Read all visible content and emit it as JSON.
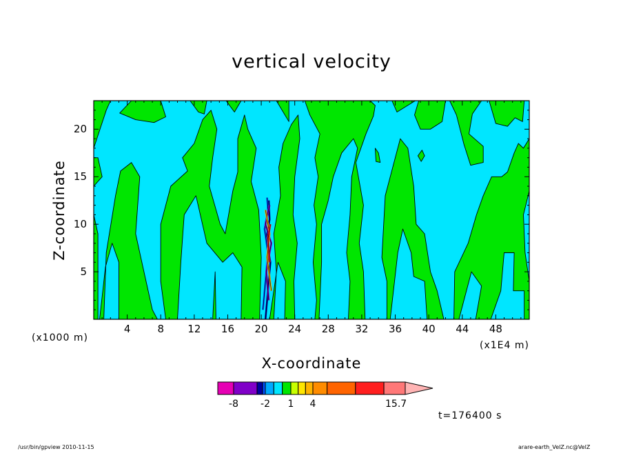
{
  "chart_data": {
    "type": "heatmap",
    "title": "vertical velocity",
    "xlabel": "X-coordinate",
    "ylabel": "Z-coordinate",
    "x_unit_left": "(x1000 m)",
    "x_unit_right": "(x1E4 m)",
    "xlim": [
      0,
      52
    ],
    "ylim": [
      0,
      23
    ],
    "x_ticks": [
      4,
      8,
      12,
      16,
      20,
      24,
      28,
      32,
      36,
      40,
      44,
      48
    ],
    "y_ticks": [
      5,
      10,
      15,
      20
    ],
    "colorbar_labels": [
      {
        "value": -8,
        "text": "-8"
      },
      {
        "value": -2,
        "text": "-2"
      },
      {
        "value": 1,
        "text": "1"
      },
      {
        "value": 4,
        "text": "4"
      },
      {
        "value": 15.7,
        "text": "15.7"
      }
    ],
    "colorbar": [
      {
        "from": -10,
        "to": -8,
        "color": "#e600b4"
      },
      {
        "from": -8,
        "to": -5,
        "color": "#8000c8"
      },
      {
        "from": -5,
        "to": -3,
        "color": "#0000a0"
      },
      {
        "from": -3,
        "to": -2,
        "color": "#0050ff"
      },
      {
        "from": -2,
        "to": -1,
        "color": "#00aaff"
      },
      {
        "from": -1,
        "to": 0,
        "color": "#00e6ff"
      },
      {
        "from": 0,
        "to": 1,
        "color": "#00e600"
      },
      {
        "from": 1,
        "to": 2,
        "color": "#c8ff00"
      },
      {
        "from": 2,
        "to": 3,
        "color": "#ffe600"
      },
      {
        "from": 3,
        "to": 4,
        "color": "#ffb400"
      },
      {
        "from": 4,
        "to": 6,
        "color": "#ff8c00"
      },
      {
        "from": 6,
        "to": 10,
        "color": "#ff6400"
      },
      {
        "from": 10,
        "to": 14,
        "color": "#ff1e1e"
      },
      {
        "from": 14,
        "to": 17,
        "color": "#ff7878"
      },
      {
        "from": 17,
        "to": 20,
        "color": "#ffb4b4"
      }
    ],
    "field_colors": {
      "negative": "#00e6ff",
      "positive": "#00e600"
    },
    "green_regions": [
      [
        [
          0,
          0
        ],
        [
          0.5,
          0
        ],
        [
          0.5,
          9
        ],
        [
          0,
          11
        ]
      ],
      [
        [
          0,
          14
        ],
        [
          1,
          15
        ],
        [
          0.5,
          17
        ],
        [
          0,
          17
        ]
      ],
      [
        [
          0,
          18
        ],
        [
          1.5,
          22
        ],
        [
          2,
          23
        ],
        [
          0,
          23
        ]
      ],
      [
        [
          0.7,
          0
        ],
        [
          1.2,
          0
        ],
        [
          1.5,
          7
        ],
        [
          2.6,
          13
        ],
        [
          3.2,
          15.6
        ],
        [
          4.5,
          16.5
        ],
        [
          5.5,
          15
        ],
        [
          5,
          9
        ],
        [
          6,
          5
        ],
        [
          7,
          1
        ],
        [
          7.6,
          0
        ],
        [
          8.6,
          0
        ],
        [
          8,
          4
        ],
        [
          8,
          10
        ],
        [
          9.2,
          14
        ],
        [
          11.2,
          15.6
        ],
        [
          10.6,
          17
        ],
        [
          12,
          18.5
        ],
        [
          13,
          21
        ],
        [
          14,
          22
        ],
        [
          14.7,
          20
        ],
        [
          14.2,
          17
        ],
        [
          13.8,
          14
        ],
        [
          15.1,
          10
        ],
        [
          15.7,
          9
        ],
        [
          16.6,
          13.5
        ],
        [
          17.2,
          15.5
        ],
        [
          17.2,
          19
        ],
        [
          18,
          21.5
        ],
        [
          18.4,
          20
        ],
        [
          19.4,
          18
        ],
        [
          18.8,
          14.5
        ],
        [
          19.7,
          11.5
        ],
        [
          20.0,
          6.5
        ],
        [
          19.8,
          0
        ],
        [
          17.6,
          0
        ],
        [
          17.7,
          5.5
        ],
        [
          16.6,
          7
        ],
        [
          15.4,
          6
        ],
        [
          13.5,
          8
        ],
        [
          12.2,
          13
        ],
        [
          10.8,
          11
        ],
        [
          10.4,
          6
        ],
        [
          10,
          0
        ],
        [
          3,
          0
        ],
        [
          3,
          6
        ],
        [
          2.2,
          8
        ],
        [
          1.4,
          5.5
        ]
      ],
      [
        [
          3.1,
          21.7
        ],
        [
          4.5,
          23
        ],
        [
          8,
          23
        ],
        [
          8.6,
          21.3
        ],
        [
          7.2,
          20.7
        ],
        [
          5,
          21
        ]
      ],
      [
        [
          11.5,
          23
        ],
        [
          13.5,
          23
        ],
        [
          13.2,
          21.6
        ],
        [
          12.5,
          21.8
        ]
      ],
      [
        [
          14.2,
          0
        ],
        [
          14.6,
          0
        ],
        [
          14.5,
          5
        ]
      ],
      [
        [
          15.8,
          23
        ],
        [
          16.8,
          21.8
        ],
        [
          17.6,
          23
        ]
      ],
      [
        [
          21.0,
          0
        ],
        [
          21.5,
          0
        ],
        [
          21.8,
          5
        ],
        [
          21.5,
          9
        ],
        [
          22.3,
          13
        ],
        [
          22.1,
          16
        ],
        [
          22.6,
          18.5
        ],
        [
          23.6,
          20.5
        ],
        [
          24.4,
          21.5
        ],
        [
          24.6,
          19
        ],
        [
          24.0,
          15
        ],
        [
          23.8,
          11
        ],
        [
          24.3,
          8
        ],
        [
          23.9,
          4
        ],
        [
          24.0,
          0
        ],
        [
          22.8,
          0
        ],
        [
          22.9,
          4
        ],
        [
          22.0,
          6
        ]
      ],
      [
        [
          21.8,
          23
        ],
        [
          23.3,
          23
        ],
        [
          23.3,
          20.8
        ]
      ],
      [
        [
          25.2,
          23
        ],
        [
          25.8,
          21.5
        ],
        [
          27,
          19.5
        ],
        [
          26.4,
          17
        ],
        [
          26.8,
          15
        ],
        [
          26.3,
          12
        ],
        [
          26.6,
          10
        ],
        [
          26.2,
          6
        ],
        [
          26.6,
          2
        ],
        [
          26.4,
          0
        ],
        [
          26.9,
          0
        ],
        [
          27.2,
          6
        ],
        [
          27.2,
          10
        ],
        [
          28.0,
          12.5
        ],
        [
          28.6,
          15
        ],
        [
          29.6,
          17.5
        ],
        [
          31.0,
          19
        ],
        [
          31.5,
          18
        ],
        [
          30.8,
          15
        ],
        [
          30.6,
          11
        ],
        [
          30.2,
          7
        ],
        [
          30.6,
          4
        ],
        [
          30.4,
          0
        ],
        [
          32.4,
          0
        ],
        [
          32.2,
          5
        ],
        [
          31.7,
          8
        ],
        [
          32.2,
          12
        ],
        [
          31.3,
          16.5
        ],
        [
          32.5,
          19.5
        ],
        [
          33.4,
          21.4
        ],
        [
          33.6,
          22.5
        ],
        [
          33.0,
          23
        ]
      ],
      [
        [
          33.6,
          18
        ],
        [
          34,
          17.5
        ],
        [
          34.2,
          16.5
        ],
        [
          33.7,
          16.6
        ]
      ],
      [
        [
          35.6,
          23
        ],
        [
          36.2,
          21.8
        ],
        [
          38.4,
          23
        ]
      ],
      [
        [
          38.3,
          21.5
        ],
        [
          39,
          20
        ],
        [
          40.2,
          20
        ],
        [
          41.6,
          20.8
        ],
        [
          42,
          23
        ],
        [
          38.8,
          23
        ]
      ],
      [
        [
          34.2,
          0
        ],
        [
          35,
          0
        ],
        [
          35,
          4
        ],
        [
          34.4,
          6.5
        ],
        [
          34.8,
          13
        ],
        [
          36,
          17
        ],
        [
          36.6,
          19
        ],
        [
          37.5,
          18
        ],
        [
          38.2,
          14
        ],
        [
          38.5,
          10
        ],
        [
          39.5,
          9
        ],
        [
          40.2,
          5
        ],
        [
          41,
          3
        ],
        [
          41.8,
          0
        ],
        [
          43,
          0
        ],
        [
          43.1,
          5
        ],
        [
          44.7,
          8
        ],
        [
          45.7,
          11
        ],
        [
          46.5,
          13
        ],
        [
          47.5,
          15
        ],
        [
          48.7,
          15
        ],
        [
          49.4,
          15.5
        ],
        [
          50.2,
          17.5
        ],
        [
          50.7,
          18.5
        ],
        [
          51.3,
          18
        ],
        [
          52,
          19
        ],
        [
          52,
          13.5
        ],
        [
          51.3,
          11
        ],
        [
          51.5,
          7
        ],
        [
          52,
          4
        ],
        [
          52,
          0
        ],
        [
          51.4,
          0
        ],
        [
          51.4,
          3
        ],
        [
          50.1,
          3
        ],
        [
          50.2,
          7
        ],
        [
          49,
          7
        ],
        [
          48.6,
          3
        ],
        [
          47.4,
          0
        ],
        [
          45.6,
          0
        ],
        [
          46.3,
          3.5
        ],
        [
          45.1,
          5
        ],
        [
          43.6,
          0
        ],
        [
          39.8,
          0
        ],
        [
          39.5,
          4
        ],
        [
          38.2,
          4.5
        ],
        [
          37.9,
          7
        ],
        [
          36.9,
          9.5
        ],
        [
          36.3,
          7
        ],
        [
          35.4,
          0
        ]
      ],
      [
        [
          42.5,
          23
        ],
        [
          43.3,
          21.5
        ],
        [
          44.2,
          18.4
        ],
        [
          45,
          16.2
        ],
        [
          46.5,
          16.5
        ],
        [
          46.5,
          18.2
        ],
        [
          44.8,
          19.5
        ],
        [
          45.2,
          21.6
        ],
        [
          46.3,
          23
        ]
      ],
      [
        [
          47.2,
          23
        ],
        [
          48,
          20.6
        ],
        [
          49.4,
          20.3
        ],
        [
          50.3,
          21.2
        ],
        [
          51.2,
          20.8
        ],
        [
          51.4,
          23
        ]
      ],
      [
        [
          38.7,
          17.2
        ],
        [
          39.2,
          17.8
        ],
        [
          39.5,
          17.2
        ],
        [
          39.1,
          16.6
        ]
      ]
    ],
    "core_strands": [
      {
        "color": "#0000a0",
        "points": [
          [
            20.5,
            0
          ],
          [
            20.8,
            3
          ],
          [
            21.1,
            6
          ],
          [
            20.6,
            8.5
          ],
          [
            21.0,
            10.5
          ],
          [
            20.9,
            12.5
          ]
        ]
      },
      {
        "color": "#0050ff",
        "points": [
          [
            20.2,
            1
          ],
          [
            20.5,
            4
          ],
          [
            20.8,
            7
          ],
          [
            20.4,
            9.5
          ],
          [
            20.8,
            11.5
          ],
          [
            20.7,
            12.8
          ]
        ]
      },
      {
        "color": "#8000c8",
        "points": [
          [
            20.9,
            2
          ],
          [
            20.6,
            5
          ],
          [
            21.2,
            8
          ],
          [
            20.5,
            10
          ],
          [
            21.0,
            12
          ]
        ]
      },
      {
        "color": "#ffb400",
        "points": [
          [
            21.2,
            3
          ],
          [
            20.7,
            6.5
          ],
          [
            21.0,
            9
          ],
          [
            20.5,
            11.5
          ]
        ]
      },
      {
        "color": "#ff1e1e",
        "points": [
          [
            21.0,
            6
          ],
          [
            20.8,
            8.5
          ],
          [
            21.1,
            10
          ]
        ]
      }
    ],
    "time_label": "t=176400 s"
  },
  "footer": {
    "left": "/usr/bin/gpview   2010-11-15",
    "right": "arare-earth_VelZ.nc@VelZ"
  }
}
